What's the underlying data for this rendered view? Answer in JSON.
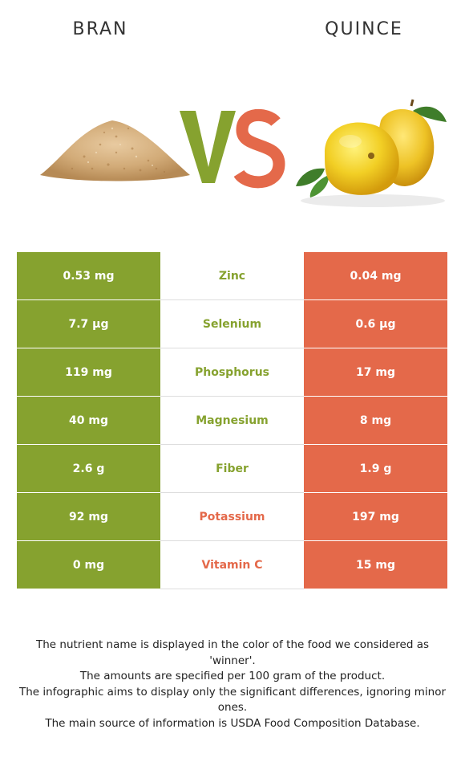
{
  "header": {
    "left_food": "BRAN",
    "right_food": "QUINCE",
    "vs_text": "VS"
  },
  "colors": {
    "bran_green": "#86a22f",
    "quince_red": "#e4694a"
  },
  "rows": [
    {
      "left": "0.53 mg",
      "nutrient": "Zinc",
      "right": "0.04 mg",
      "winner": "left"
    },
    {
      "left": "7.7 µg",
      "nutrient": "Selenium",
      "right": "0.6 µg",
      "winner": "left"
    },
    {
      "left": "119 mg",
      "nutrient": "Phosphorus",
      "right": "17 mg",
      "winner": "left"
    },
    {
      "left": "40 mg",
      "nutrient": "Magnesium",
      "right": "8 mg",
      "winner": "left"
    },
    {
      "left": "2.6 g",
      "nutrient": "Fiber",
      "right": "1.9 g",
      "winner": "left"
    },
    {
      "left": "92 mg",
      "nutrient": "Potassium",
      "right": "197 mg",
      "winner": "right"
    },
    {
      "left": "0 mg",
      "nutrient": "Vitamin C",
      "right": "15 mg",
      "winner": "right"
    }
  ],
  "footer": {
    "line1": "The nutrient name is displayed in the color of the food we considered as 'winner'.",
    "line2": "The amounts are specified per 100 gram of the product.",
    "line3": "The infographic aims to display only the significant differences, ignoring minor ones.",
    "line4": "The main source of information is USDA Food Composition Database."
  }
}
